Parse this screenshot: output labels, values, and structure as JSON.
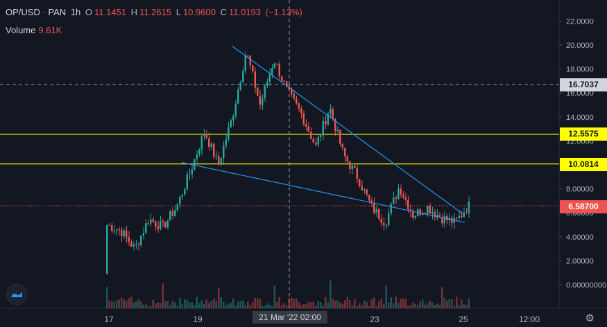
{
  "legend": {
    "symbol": "OP/USD · PAN",
    "interval": "1h",
    "open_label": "O",
    "open": "11.1451",
    "high_label": "H",
    "high": "11.2615",
    "low_label": "L",
    "low": "10.9600",
    "close_label": "C",
    "close": "11.0193",
    "change": "(−1.13%)"
  },
  "volume": {
    "label": "Volume",
    "value": "9.61K"
  },
  "price_axis": {
    "ticks": [
      "22.0000",
      "20.0000",
      "18.0000",
      "16.0000",
      "14.0000",
      "12.0000",
      "10.0000",
      "8.00000",
      "6.00000",
      "4.00000",
      "2.00000",
      "0.00000000"
    ],
    "tick_values": [
      22,
      20,
      18,
      16,
      14,
      12,
      10,
      8,
      6,
      4,
      2,
      0
    ]
  },
  "time_axis": {
    "labels": [
      "17",
      "19",
      "21 Mar '22",
      "02:00",
      "23",
      "25",
      "12:00"
    ]
  },
  "tags": {
    "crosshair": "16.7037",
    "level_high": "12.5575",
    "level_low": "10.0814",
    "last_price": "6.58700"
  },
  "colors": {
    "background": "#131722",
    "up": "#26a69a",
    "down": "#ef5350",
    "horizontal_line": "#ffff00",
    "trend_line": "#2196f3"
  },
  "chart_data": {
    "type": "candlestick",
    "symbol": "OP/USD",
    "timeframe": "1h",
    "ylim": [
      0,
      22.5
    ],
    "horizontal_levels": [
      12.5575,
      10.0814
    ],
    "crosshair_price": 16.7037,
    "last_price": 6.587,
    "close_path": [
      {
        "t": "17",
        "v": 5.0
      },
      {
        "t": "17",
        "v": 4.5
      },
      {
        "t": "18",
        "v": 3.0
      },
      {
        "t": "18",
        "v": 5.5
      },
      {
        "t": "18",
        "v": 4.8
      },
      {
        "t": "19",
        "v": 6.5
      },
      {
        "t": "19",
        "v": 9.5
      },
      {
        "t": "19",
        "v": 12.8
      },
      {
        "t": "19",
        "v": 10.0
      },
      {
        "t": "20",
        "v": 14.0
      },
      {
        "t": "20",
        "v": 19.5
      },
      {
        "t": "20",
        "v": 15.0
      },
      {
        "t": "20",
        "v": 18.8
      },
      {
        "t": "21",
        "v": 16.0
      },
      {
        "t": "21",
        "v": 14.2
      },
      {
        "t": "21",
        "v": 11.5
      },
      {
        "t": "21",
        "v": 14.8
      },
      {
        "t": "22",
        "v": 10.8
      },
      {
        "t": "22",
        "v": 9.0
      },
      {
        "t": "22",
        "v": 6.5
      },
      {
        "t": "23",
        "v": 5.2
      },
      {
        "t": "23",
        "v": 8.2
      },
      {
        "t": "23",
        "v": 5.8
      },
      {
        "t": "24",
        "v": 6.5
      },
      {
        "t": "24",
        "v": 5.6
      },
      {
        "t": "25",
        "v": 5.2
      },
      {
        "t": "25",
        "v": 6.6
      }
    ]
  }
}
